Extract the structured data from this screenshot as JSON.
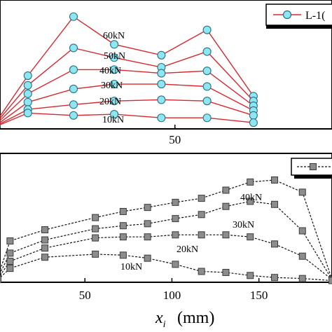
{
  "colors": {
    "top_line": "#d9272e",
    "top_marker_fill": "#8ee7ee",
    "top_marker_stroke": "#2a6f8a",
    "bottom_line": "#111111",
    "bottom_marker_fill": "#8c8c8c",
    "bottom_marker_stroke": "#3a3a3a",
    "frame": "#000000"
  },
  "icons": {
    "top_marker": "circle",
    "bottom_marker": "square"
  },
  "chart_data": [
    {
      "type": "line",
      "panel": "top",
      "legend": {
        "label": "L-1(",
        "placement": "top-right"
      },
      "xlim": [
        25.5,
        72
      ],
      "ylim": [
        0,
        1
      ],
      "x_ticks": [
        50
      ],
      "tick_labels": {
        "x": [
          "50"
        ]
      },
      "load_labels": [
        "60kN",
        "50kN",
        "40kN",
        "30kN",
        "20kN",
        "10kN"
      ],
      "series": [
        {
          "load": "60kN",
          "x": [
            25,
            29.4,
            35.8,
            41.5,
            48.1,
            54.5,
            61
          ],
          "y": [
            0.05,
            0.43,
            0.92,
            0.69,
            0.6,
            0.81,
            0.26
          ]
        },
        {
          "load": "50kN",
          "x": [
            25,
            29.4,
            35.8,
            41.5,
            48.1,
            54.5,
            61
          ],
          "y": [
            0.04,
            0.35,
            0.66,
            0.58,
            0.5,
            0.63,
            0.22
          ]
        },
        {
          "load": "40kN",
          "x": [
            25,
            29.4,
            35.8,
            41.5,
            48.1,
            54.5,
            61
          ],
          "y": [
            0.03,
            0.28,
            0.48,
            0.48,
            0.45,
            0.47,
            0.18
          ]
        },
        {
          "load": "30kN",
          "x": [
            25,
            29.4,
            35.8,
            41.5,
            48.1,
            54.5,
            61
          ],
          "y": [
            0.02,
            0.21,
            0.32,
            0.36,
            0.36,
            0.34,
            0.14
          ]
        },
        {
          "load": "20kN",
          "x": [
            25,
            29.4,
            35.8,
            41.5,
            48.1,
            54.5,
            61
          ],
          "y": [
            0.015,
            0.15,
            0.19,
            0.22,
            0.23,
            0.22,
            0.1
          ]
        },
        {
          "load": "10kN",
          "x": [
            25,
            29.4,
            35.8,
            41.5,
            48.1,
            54.5,
            61
          ],
          "y": [
            0.01,
            0.12,
            0.1,
            0.11,
            0.08,
            0.08,
            0.04
          ]
        }
      ]
    },
    {
      "type": "line",
      "panel": "bottom",
      "xlabel": {
        "symbol": "x",
        "subscript": "i",
        "unit": "(mm)"
      },
      "xlim": [
        0,
        192
      ],
      "ylim": [
        0,
        1
      ],
      "x_ticks": [
        50,
        100,
        150
      ],
      "tick_labels": {
        "x": [
          "50",
          "100",
          "150"
        ]
      },
      "load_labels": [
        "40kN",
        "30kN",
        "20kN",
        "10kN"
      ],
      "series": [
        {
          "load": "40kN",
          "x": [
            0,
            7,
            27,
            56,
            72,
            86,
            102,
            117,
            131,
            145,
            159,
            175,
            192
          ],
          "y": [
            0.05,
            0.4,
            0.51,
            0.63,
            0.69,
            0.73,
            0.78,
            0.82,
            0.9,
            0.98,
            1.0,
            0.88,
            0.02
          ]
        },
        {
          "load": "30kN",
          "x": [
            0,
            7,
            27,
            56,
            72,
            86,
            102,
            117,
            131,
            145,
            159,
            175,
            192
          ],
          "y": [
            0.04,
            0.28,
            0.41,
            0.52,
            0.55,
            0.57,
            0.62,
            0.66,
            0.74,
            0.79,
            0.76,
            0.5,
            0.02
          ]
        },
        {
          "load": "20kN",
          "x": [
            0,
            7,
            27,
            56,
            72,
            86,
            102,
            117,
            131,
            145,
            159,
            175,
            192
          ],
          "y": [
            0.03,
            0.2,
            0.33,
            0.43,
            0.44,
            0.44,
            0.46,
            0.46,
            0.46,
            0.44,
            0.37,
            0.25,
            0.02
          ]
        },
        {
          "load": "10kN",
          "x": [
            0,
            7,
            27,
            56,
            72,
            86,
            102,
            117,
            131,
            145,
            159,
            175,
            192
          ],
          "y": [
            0.02,
            0.13,
            0.24,
            0.27,
            0.26,
            0.23,
            0.17,
            0.1,
            0.09,
            0.06,
            0.04,
            0.03,
            0.01
          ]
        }
      ]
    }
  ]
}
